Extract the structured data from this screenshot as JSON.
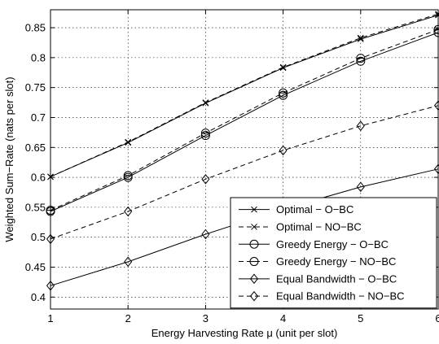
{
  "chart_data": {
    "type": "line",
    "title": "",
    "xlabel": "Energy Harvesting Rate μ (unit per slot)",
    "ylabel": "Weighted Sum−Rate (nats per slot)",
    "xlim": [
      1,
      6
    ],
    "ylim": [
      0.38,
      0.88
    ],
    "x_ticks": [
      "1",
      "2",
      "3",
      "4",
      "5",
      "6"
    ],
    "y_ticks": [
      "0.4",
      "0.45",
      "0.5",
      "0.55",
      "0.6",
      "0.65",
      "0.7",
      "0.75",
      "0.8",
      "0.85"
    ],
    "grid": true,
    "legend_position": "bottom-right",
    "x": [
      1,
      2,
      3,
      4,
      5,
      6
    ],
    "series": [
      {
        "name": "Optimal − O−BC",
        "values": [
          0.601,
          0.658,
          0.724,
          0.783,
          0.831,
          0.871
        ],
        "line": "solid",
        "marker": "x"
      },
      {
        "name": "Optimal − NO−BC",
        "values": [
          0.601,
          0.659,
          0.725,
          0.784,
          0.833,
          0.873
        ],
        "line": "dashed",
        "marker": "x"
      },
      {
        "name": "Greedy Energy − O−BC",
        "values": [
          0.543,
          0.6,
          0.67,
          0.737,
          0.794,
          0.842
        ],
        "line": "solid",
        "marker": "circle"
      },
      {
        "name": "Greedy Energy − NO−BC",
        "values": [
          0.545,
          0.603,
          0.674,
          0.741,
          0.799,
          0.847
        ],
        "line": "dashed",
        "marker": "circle-dash"
      },
      {
        "name": "Equal Bandwidth − O−BC",
        "values": [
          0.419,
          0.459,
          0.505,
          0.547,
          0.584,
          0.614
        ],
        "line": "solid",
        "marker": "diamond"
      },
      {
        "name": "Equal Bandwidth − NO−BC",
        "values": [
          0.497,
          0.543,
          0.597,
          0.645,
          0.686,
          0.72
        ],
        "line": "dashed",
        "marker": "diamond"
      }
    ]
  }
}
